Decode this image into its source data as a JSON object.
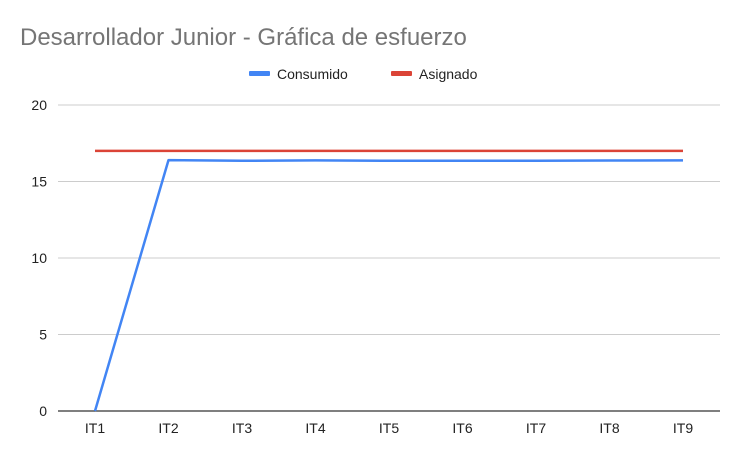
{
  "chart_data": {
    "type": "line",
    "title": "Desarrollador Junior - Gráfica de esfuerzo",
    "xlabel": "",
    "ylabel": "",
    "categories": [
      "IT1",
      "IT2",
      "IT3",
      "IT4",
      "IT5",
      "IT6",
      "IT7",
      "IT8",
      "IT9"
    ],
    "ylim": [
      0,
      20
    ],
    "yticks": [
      0,
      5,
      10,
      15,
      20
    ],
    "grid": true,
    "legend_position": "top-center",
    "series": [
      {
        "name": "Consumido",
        "color": "#4285f4",
        "values": [
          0,
          16.4,
          16.35,
          16.38,
          16.35,
          16.35,
          16.36,
          16.37,
          16.38
        ]
      },
      {
        "name": "Asignado",
        "color": "#db4437",
        "values": [
          17,
          17,
          17,
          17,
          17,
          17,
          17,
          17,
          17
        ]
      }
    ]
  }
}
